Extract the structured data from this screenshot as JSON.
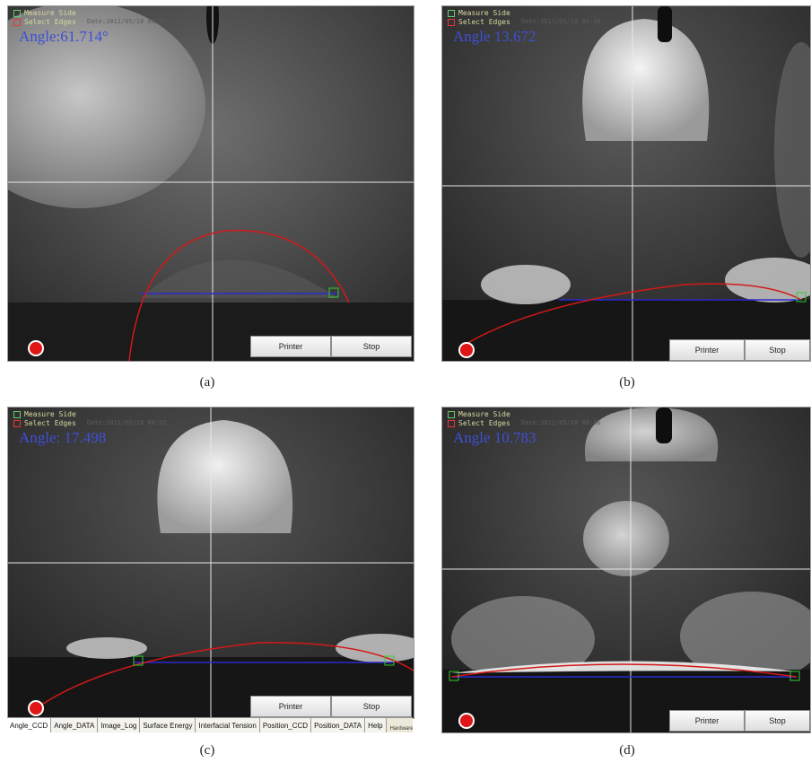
{
  "panels": {
    "a": {
      "legend": {
        "measure": "Measure Side",
        "select": "Select Edges"
      },
      "meta": "Date:2011/05/18 08:32",
      "angle": "Angle:61.714°",
      "buttons": {
        "printer": "Printer",
        "stop": "Stop"
      },
      "caption": "(a)"
    },
    "b": {
      "legend": {
        "measure": "Measure Side",
        "select": "Select Edges"
      },
      "meta": "Date:2011/05/18 08:46",
      "angle": "Angle 13.672",
      "buttons": {
        "printer": "Printer",
        "stop": "Stop"
      },
      "caption": "(b)"
    },
    "c": {
      "legend": {
        "measure": "Measure Side",
        "select": "Select Edges"
      },
      "meta": "Date:2011/05/18 08:52",
      "angle": "Angle: 17.498",
      "buttons": {
        "printer": "Printer",
        "stop": "Stop"
      },
      "caption": "(c)",
      "tabs": [
        "Angle_CCD",
        "Angle_DATA",
        "Image_Log",
        "Surface Energy",
        "Interfacial Tension",
        "Position_CCD",
        "Position_DATA",
        "Help"
      ],
      "hardware": "Hardware CAM"
    },
    "d": {
      "legend": {
        "measure": "Measure Side",
        "select": "Select Edges"
      },
      "meta": "Date:2011/05/18 08:46",
      "angle": "Angle 10.783",
      "buttons": {
        "printer": "Printer",
        "stop": "Stop"
      },
      "caption": "(d)"
    }
  },
  "colors": {
    "fit_curve": "#d41818",
    "baseline": "#2a2ad0",
    "angle_text": "#3e4fd6",
    "record": "#e01515"
  }
}
